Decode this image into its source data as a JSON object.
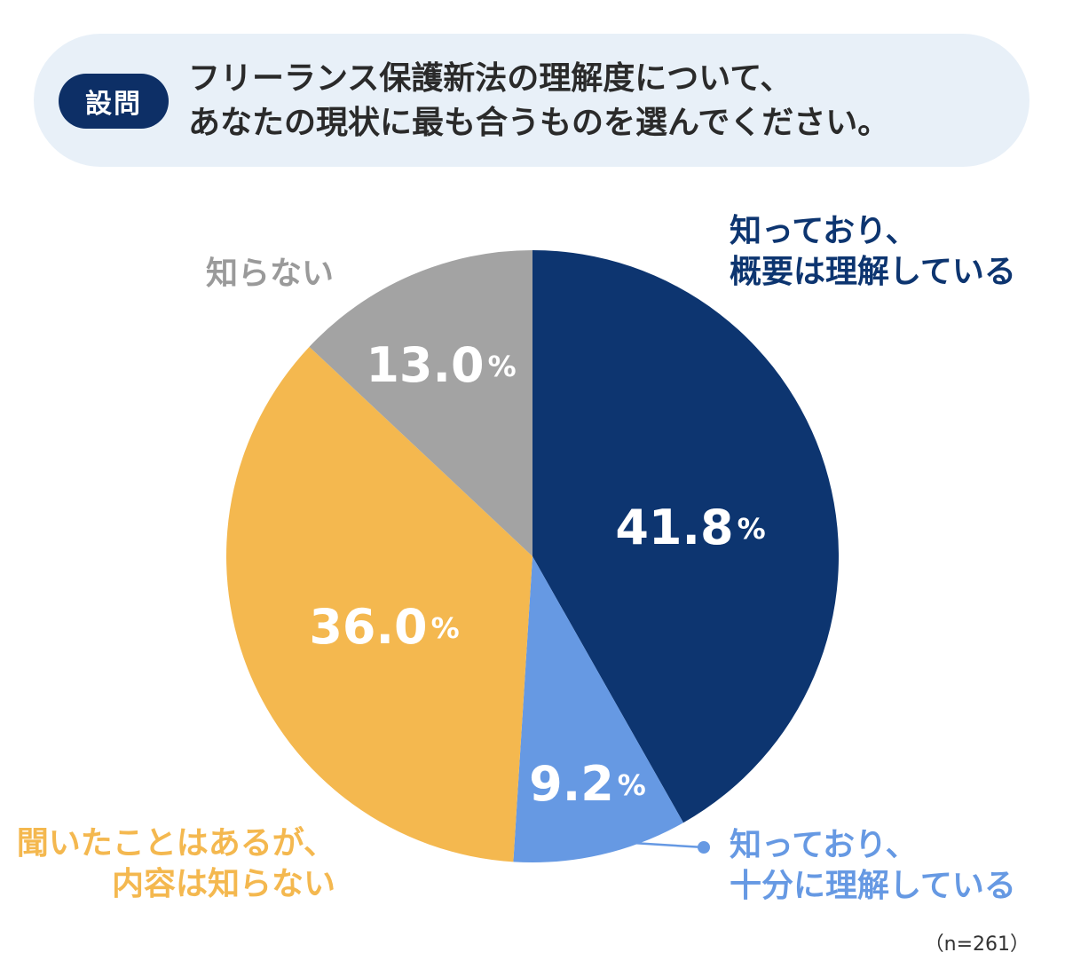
{
  "question": {
    "badge": "設問",
    "line1": "フリーランス保護新法の理解度について、",
    "line2": "あなたの現状に最も合うものを選んでください。"
  },
  "sample_size": "（n=261）",
  "chart_data": {
    "type": "pie",
    "categories": [
      "知っており、概要は理解している",
      "知っており、十分に理解している",
      "聞いたことはあるが、内容は知らない",
      "知らない"
    ],
    "values": [
      41.8,
      9.2,
      36.0,
      13.0
    ],
    "unit": "%",
    "colors": [
      "#0d3570",
      "#6699e3",
      "#f4b84f",
      "#a3a3a3"
    ],
    "label_lines": [
      [
        "知っており、",
        "概要は理解している"
      ],
      [
        "知っており、",
        "十分に理解している"
      ],
      [
        "聞いたことはあるが、",
        "内容は知らない"
      ],
      [
        "知らない"
      ]
    ],
    "value_labels": [
      "41.8",
      "9.2",
      "36.0",
      "13.0"
    ]
  }
}
